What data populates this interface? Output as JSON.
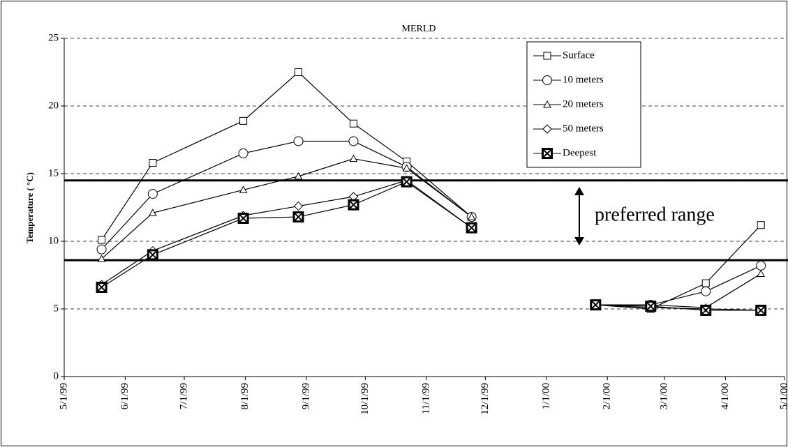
{
  "chart_data": {
    "type": "line",
    "title": "MERLD",
    "y_label": "Temperature ( °C)",
    "x": [
      "5/20/99",
      "6/15/99",
      "7/31/99",
      "8/28/99",
      "9/25/99",
      "10/22/99",
      "11/24/99",
      "12/24/99",
      "1/26/00",
      "2/23/00",
      "3/22/00",
      "4/19/00"
    ],
    "series": [
      {
        "name": "Surface",
        "color": "#000000",
        "marker": "square",
        "values": [
          10.1,
          15.8,
          18.9,
          22.5,
          18.7,
          15.9,
          11.8,
          null,
          5.3,
          5.0,
          6.9,
          11.2
        ]
      },
      {
        "name": "10 meters",
        "color": "#000000",
        "marker": "circle",
        "values": [
          9.4,
          13.5,
          16.5,
          17.4,
          17.4,
          15.5,
          11.8,
          null,
          5.3,
          5.3,
          6.3,
          8.2
        ]
      },
      {
        "name": "20 meters",
        "color": "#000000",
        "marker": "triangle",
        "values": [
          8.7,
          12.1,
          13.8,
          14.8,
          16.1,
          15.4,
          11.8,
          null,
          5.3,
          5.3,
          5.1,
          7.6
        ]
      },
      {
        "name": "50 meters",
        "color": "#000000",
        "marker": "diamond",
        "values": [
          6.8,
          9.3,
          11.9,
          12.6,
          13.3,
          14.5,
          11.0,
          null,
          5.3,
          5.1,
          5.0,
          4.9
        ]
      },
      {
        "name": "Deepest",
        "color": "#000000",
        "marker": "xbox",
        "values": [
          6.6,
          9.0,
          11.7,
          11.8,
          12.7,
          14.4,
          11.0,
          null,
          5.3,
          5.2,
          4.9,
          4.9
        ]
      }
    ],
    "xlim": [
      "5/1/99",
      "5/1/00"
    ],
    "xticks": [
      "5/1/99",
      "6/1/99",
      "7/1/99",
      "8/1/99",
      "9/1/99",
      "10/1/99",
      "11/1/99",
      "12/1/99",
      "1/1/00",
      "2/1/00",
      "3/1/00",
      "4/1/00",
      "5/1/00"
    ],
    "ylim": [
      0,
      25
    ],
    "yticks": [
      0,
      5,
      10,
      15,
      20,
      25
    ],
    "grid": true,
    "reference_lines": [
      14.5,
      8.6
    ],
    "annotation": "preferred range",
    "legend": "upper right"
  }
}
